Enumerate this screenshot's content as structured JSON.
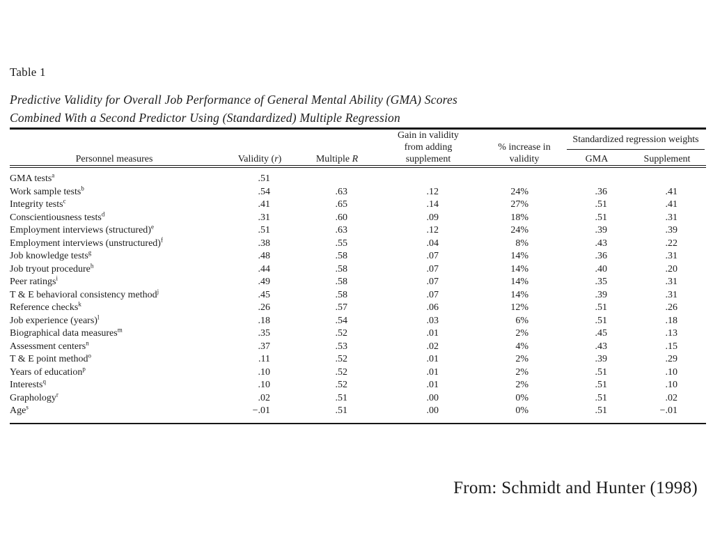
{
  "page": {
    "table_label": "Table 1",
    "table_title_line1": "Predictive Validity for Overall Job Performance of General Mental Ability (GMA) Scores",
    "table_title_line2": "Combined With a Second Predictor Using (Standardized) Multiple Regression",
    "source_note": "From:  Schmidt and Hunter (1998)"
  },
  "table": {
    "headers": {
      "personnel_measures": "Personnel measures",
      "validity": {
        "prefix": "Validity (",
        "italic_var": "r",
        "suffix": ")"
      },
      "multiple_r": {
        "prefix": "Multiple ",
        "italic_var": "R",
        "suffix": ""
      },
      "gain": "Gain in validity from adding supplement",
      "pct_increase": "% increase in validity",
      "std_group": "Standardized regression weights",
      "gma": "GMA",
      "supplement": "Supplement"
    },
    "rows": [
      {
        "measure": "GMA tests",
        "sup": "a",
        "validity": ".51",
        "multiple_r": "",
        "gain": "",
        "pct": "",
        "gma": "",
        "supplement": ""
      },
      {
        "measure": "Work sample tests",
        "sup": "b",
        "validity": ".54",
        "multiple_r": ".63",
        "gain": ".12",
        "pct": "24%",
        "gma": ".36",
        "supplement": ".41"
      },
      {
        "measure": "Integrity tests",
        "sup": "c",
        "validity": ".41",
        "multiple_r": ".65",
        "gain": ".14",
        "pct": "27%",
        "gma": ".51",
        "supplement": ".41"
      },
      {
        "measure": "Conscientiousness tests",
        "sup": "d",
        "validity": ".31",
        "multiple_r": ".60",
        "gain": ".09",
        "pct": "18%",
        "gma": ".51",
        "supplement": ".31"
      },
      {
        "measure": "Employment interviews (structured)",
        "sup": "e",
        "validity": ".51",
        "multiple_r": ".63",
        "gain": ".12",
        "pct": "24%",
        "gma": ".39",
        "supplement": ".39"
      },
      {
        "measure": "Employment interviews (unstructured)",
        "sup": "f",
        "validity": ".38",
        "multiple_r": ".55",
        "gain": ".04",
        "pct": "8%",
        "gma": ".43",
        "supplement": ".22"
      },
      {
        "measure": "Job knowledge tests",
        "sup": "g",
        "validity": ".48",
        "multiple_r": ".58",
        "gain": ".07",
        "pct": "14%",
        "gma": ".36",
        "supplement": ".31"
      },
      {
        "measure": "Job tryout procedure",
        "sup": "h",
        "validity": ".44",
        "multiple_r": ".58",
        "gain": ".07",
        "pct": "14%",
        "gma": ".40",
        "supplement": ".20"
      },
      {
        "measure": "Peer ratings",
        "sup": "i",
        "validity": ".49",
        "multiple_r": ".58",
        "gain": ".07",
        "pct": "14%",
        "gma": ".35",
        "supplement": ".31"
      },
      {
        "measure": "T & E behavioral consistency method",
        "sup": "j",
        "validity": ".45",
        "multiple_r": ".58",
        "gain": ".07",
        "pct": "14%",
        "gma": ".39",
        "supplement": ".31"
      },
      {
        "measure": "Reference checks",
        "sup": "k",
        "validity": ".26",
        "multiple_r": ".57",
        "gain": ".06",
        "pct": "12%",
        "gma": ".51",
        "supplement": ".26"
      },
      {
        "measure": "Job experience (years)",
        "sup": "l",
        "validity": ".18",
        "multiple_r": ".54",
        "gain": ".03",
        "pct": "6%",
        "gma": ".51",
        "supplement": ".18"
      },
      {
        "measure": "Biographical data measures",
        "sup": "m",
        "validity": ".35",
        "multiple_r": ".52",
        "gain": ".01",
        "pct": "2%",
        "gma": ".45",
        "supplement": ".13"
      },
      {
        "measure": "Assessment centers",
        "sup": "n",
        "validity": ".37",
        "multiple_r": ".53",
        "gain": ".02",
        "pct": "4%",
        "gma": ".43",
        "supplement": ".15"
      },
      {
        "measure": "T & E point method",
        "sup": "o",
        "validity": ".11",
        "multiple_r": ".52",
        "gain": ".01",
        "pct": "2%",
        "gma": ".39",
        "supplement": ".29"
      },
      {
        "measure": "Years of education",
        "sup": "p",
        "validity": ".10",
        "multiple_r": ".52",
        "gain": ".01",
        "pct": "2%",
        "gma": ".51",
        "supplement": ".10"
      },
      {
        "measure": "Interests",
        "sup": "q",
        "validity": ".10",
        "multiple_r": ".52",
        "gain": ".01",
        "pct": "2%",
        "gma": ".51",
        "supplement": ".10"
      },
      {
        "measure": "Graphology",
        "sup": "r",
        "validity": ".02",
        "multiple_r": ".51",
        "gain": ".00",
        "pct": "0%",
        "gma": ".51",
        "supplement": ".02"
      },
      {
        "measure": "Age",
        "sup": "s",
        "validity": "−.01",
        "multiple_r": ".51",
        "gain": ".00",
        "pct": "0%",
        "gma": ".51",
        "supplement": "−.01"
      }
    ]
  }
}
